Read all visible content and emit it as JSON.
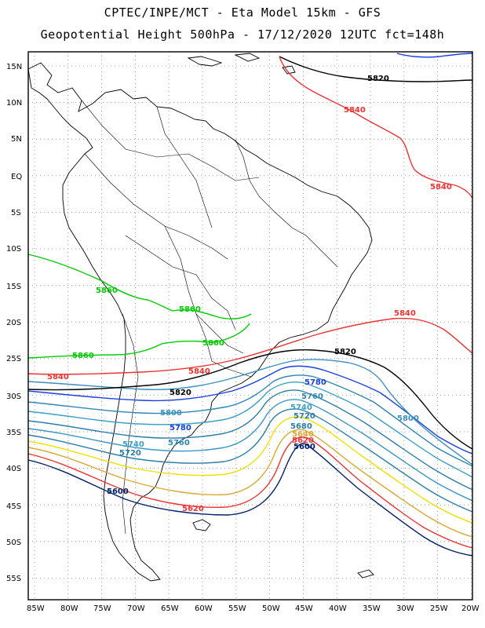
{
  "title": {
    "line1": "CPTEC/INPE/MCT -  Eta Model 15km - GFS",
    "line2": "Geopotential Height 500hPa - 17/12/2020 12UTC fct=148h"
  },
  "lat_labels": [
    "15N",
    "10N",
    "5N",
    "EQ",
    "5S",
    "10S",
    "15S",
    "20S",
    "25S",
    "30S",
    "35S",
    "40S",
    "45S",
    "50S",
    "55S"
  ],
  "lon_labels": [
    "85W",
    "80W",
    "75W",
    "70W",
    "65W",
    "60W",
    "55W",
    "50W",
    "45W",
    "40W",
    "35W",
    "30W",
    "25W",
    "20W"
  ],
  "contour_colors": {
    "5600": "#00206a",
    "5620": "#ee3333",
    "5640": "#d9aa33",
    "5660": "#f0e000",
    "5680": "#2b7fa8",
    "5700": "#3d97c8",
    "5720": "#2d7ea8",
    "5740": "#3aa0c8",
    "5760": "#2e86b8",
    "5780": "#1a40e0",
    "5800": "#3a8fc0",
    "5820": "#000000",
    "5840": "#ee3333",
    "5860": "#00cc00"
  },
  "contour_labels": [
    {
      "text": "5820",
      "color": "#000000"
    },
    {
      "text": "5840",
      "color": "#ee3333"
    },
    {
      "text": "5840",
      "color": "#ee3333"
    },
    {
      "text": "5840",
      "color": "#ee3333"
    },
    {
      "text": "5860",
      "color": "#00cc00"
    },
    {
      "text": "5860",
      "color": "#00cc00"
    },
    {
      "text": "5860",
      "color": "#00cc00"
    },
    {
      "text": "5860",
      "color": "#00cc00"
    },
    {
      "text": "5840",
      "color": "#ee3333"
    },
    {
      "text": "5840",
      "color": "#ee3333"
    },
    {
      "text": "5820",
      "color": "#000000"
    },
    {
      "text": "5820",
      "color": "#000000"
    },
    {
      "text": "5780",
      "color": "#1a40e0"
    },
    {
      "text": "5760",
      "color": "#2e86b8"
    },
    {
      "text": "5740",
      "color": "#3aa0c8"
    },
    {
      "text": "5720",
      "color": "#2d7ea8"
    },
    {
      "text": "5800",
      "color": "#3a8fc0"
    },
    {
      "text": "5800",
      "color": "#3a8fc0"
    },
    {
      "text": "5780",
      "color": "#1a40e0"
    },
    {
      "text": "5760",
      "color": "#2e86b8"
    },
    {
      "text": "5740",
      "color": "#3aa0c8"
    },
    {
      "text": "5720",
      "color": "#2d7ea8"
    },
    {
      "text": "5680",
      "color": "#2b7fa8"
    },
    {
      "text": "5640",
      "color": "#d9aa33"
    },
    {
      "text": "5620",
      "color": "#ee3333"
    },
    {
      "text": "5600",
      "color": "#00206a"
    },
    {
      "text": "5600",
      "color": "#00206a"
    },
    {
      "text": "5620",
      "color": "#ee3333"
    }
  ]
}
